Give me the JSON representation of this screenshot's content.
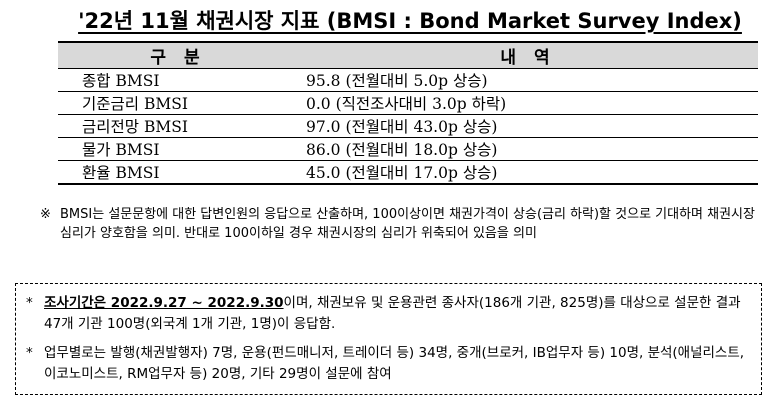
{
  "title": "'22년 11월 채권시장 지표 (BMSI : Bond Market Survey Index)",
  "table": {
    "headers": [
      "구 분",
      "내 역"
    ],
    "rows": [
      {
        "name": "종합 BMSI",
        "detail": "95.8 (전월대비 5.0p 상승)"
      },
      {
        "name": "기준금리 BMSI",
        "detail": "0.0 (직전조사대비 3.0p 하락)"
      },
      {
        "name": "금리전망 BMSI",
        "detail": "97.0 (전월대비 43.0p 상승)"
      },
      {
        "name": "물가 BMSI",
        "detail": "86.0 (전월대비 18.0p 상승)"
      },
      {
        "name": "환율 BMSI",
        "detail": "45.0 (전월대비 17.0p 상승)"
      }
    ]
  },
  "note": {
    "mark": "※",
    "text": "BMSI는 설문문항에 대한 답변인원의 응답으로 산출하며, 100이상이면 채권가격이 상승(금리 하락)할 것으로 기대하며 채권시장 심리가 양호함을 의미. 반대로 100이하일 경우 채권시장의 심리가 위축되어 있음을 의미"
  },
  "survey": {
    "bullet": "*",
    "period_label": "조사기간은 2022.9.27 ~ 2022.9.30",
    "period_rest": "이며, 채권보유 및 운용관련 종사자(186개 기관, 825명)를 대상으로 설문한 결과 47개 기관 100명(외국계 1개 기관, 1명)이 응답함.",
    "breakdown": "업무별로는 발행(채권발행자) 7명, 운용(펀드매니저, 트레이더 등) 34명, 중개(브로커, IB업무자 등) 10명, 분석(애널리스트, 이코노미스트, RM업무자 등) 20명, 기타 29명이 설문에 참여"
  }
}
